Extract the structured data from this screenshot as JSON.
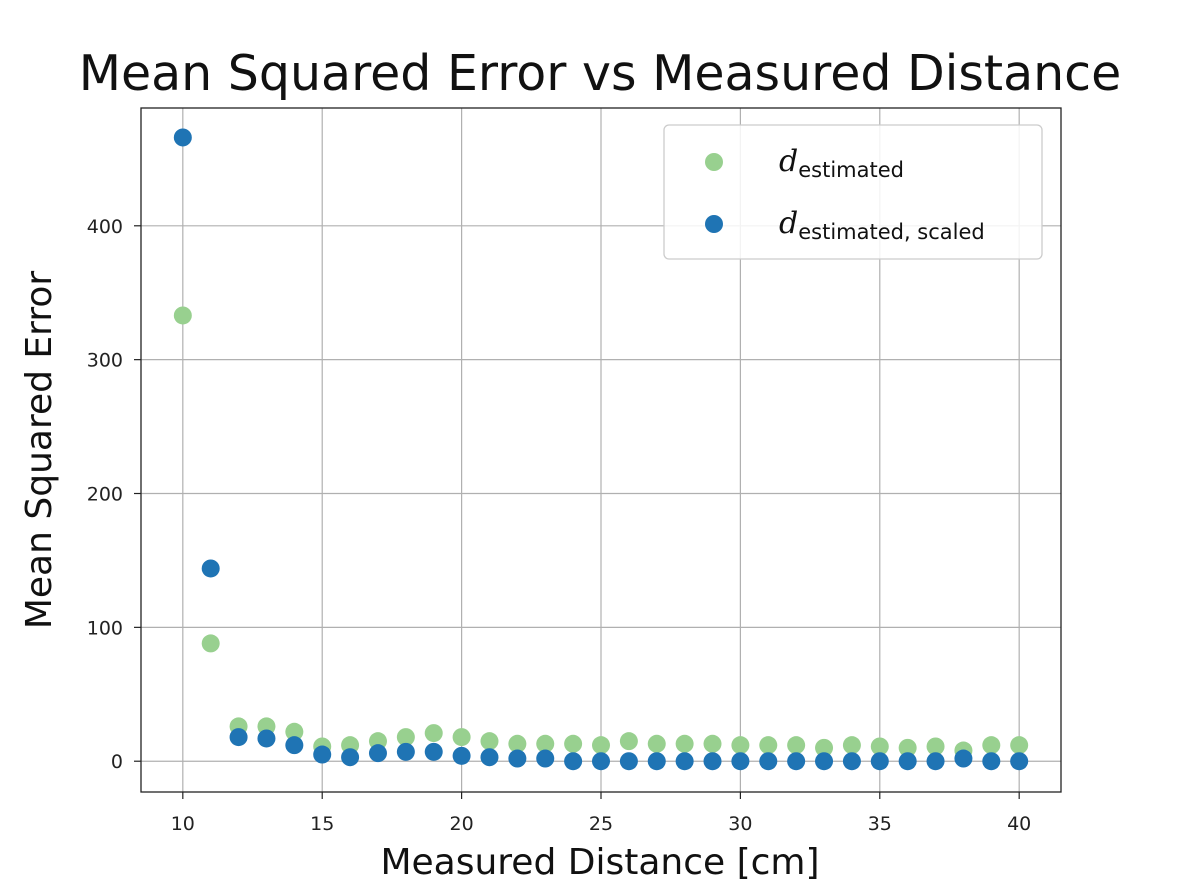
{
  "chart_data": {
    "type": "scatter",
    "title": "Mean Squared Error vs Measured Distance",
    "xlabel": "Measured Distance [cm]",
    "ylabel": "Mean Squared Error",
    "xlim": [
      8.5,
      41.5
    ],
    "ylim": [
      -23,
      488
    ],
    "xticks": [
      10,
      15,
      20,
      25,
      30,
      35,
      40
    ],
    "yticks": [
      0,
      100,
      200,
      300,
      400
    ],
    "grid": true,
    "legend_position": "top-right",
    "x": [
      10,
      11,
      12,
      13,
      14,
      15,
      16,
      17,
      18,
      19,
      20,
      21,
      22,
      23,
      24,
      25,
      26,
      27,
      28,
      29,
      30,
      31,
      32,
      33,
      34,
      35,
      36,
      37,
      38,
      39,
      40
    ],
    "series": [
      {
        "name": "d_estimated",
        "legend_main": "d",
        "legend_sub": "estimated",
        "color": "#98d08f",
        "values": [
          333,
          88,
          26,
          26,
          22,
          11,
          12,
          15,
          18,
          21,
          18,
          15,
          13,
          13,
          13,
          12,
          15,
          13,
          13,
          13,
          12,
          12,
          12,
          10,
          12,
          11,
          10,
          11,
          8,
          12,
          12
        ]
      },
      {
        "name": "d_estimated, scaled",
        "legend_main": "d",
        "legend_sub": "estimated, scaled",
        "color": "#1f74b4",
        "values": [
          466,
          144,
          18,
          17,
          12,
          5,
          3,
          6,
          7,
          7,
          4,
          3,
          2,
          2,
          0,
          0,
          0,
          0,
          0,
          0,
          0,
          0,
          0,
          0,
          0,
          0,
          0,
          0,
          2,
          0,
          0
        ]
      }
    ]
  }
}
